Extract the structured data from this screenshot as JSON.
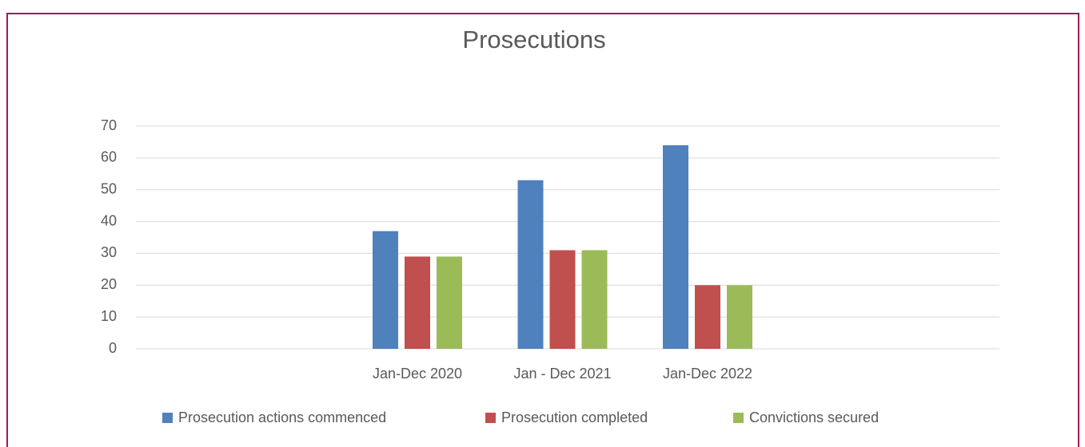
{
  "chart_data": {
    "type": "bar",
    "title": "Prosecutions",
    "categories": [
      "Jan-Dec 2020",
      "Jan - Dec 2021",
      "Jan-Dec 2022"
    ],
    "series": [
      {
        "name": "Prosecution actions commenced",
        "color": "#4f81bd",
        "values": [
          37,
          53,
          64
        ]
      },
      {
        "name": "Prosecution completed",
        "color": "#c0504d",
        "values": [
          29,
          31,
          20
        ]
      },
      {
        "name": "Convictions secured",
        "color": "#9bbb59",
        "values": [
          29,
          31,
          20
        ]
      }
    ],
    "ylim": [
      0,
      70
    ],
    "yticks": [
      0,
      10,
      20,
      30,
      40,
      50,
      60,
      70
    ],
    "grid": true,
    "legend": "bottom"
  }
}
